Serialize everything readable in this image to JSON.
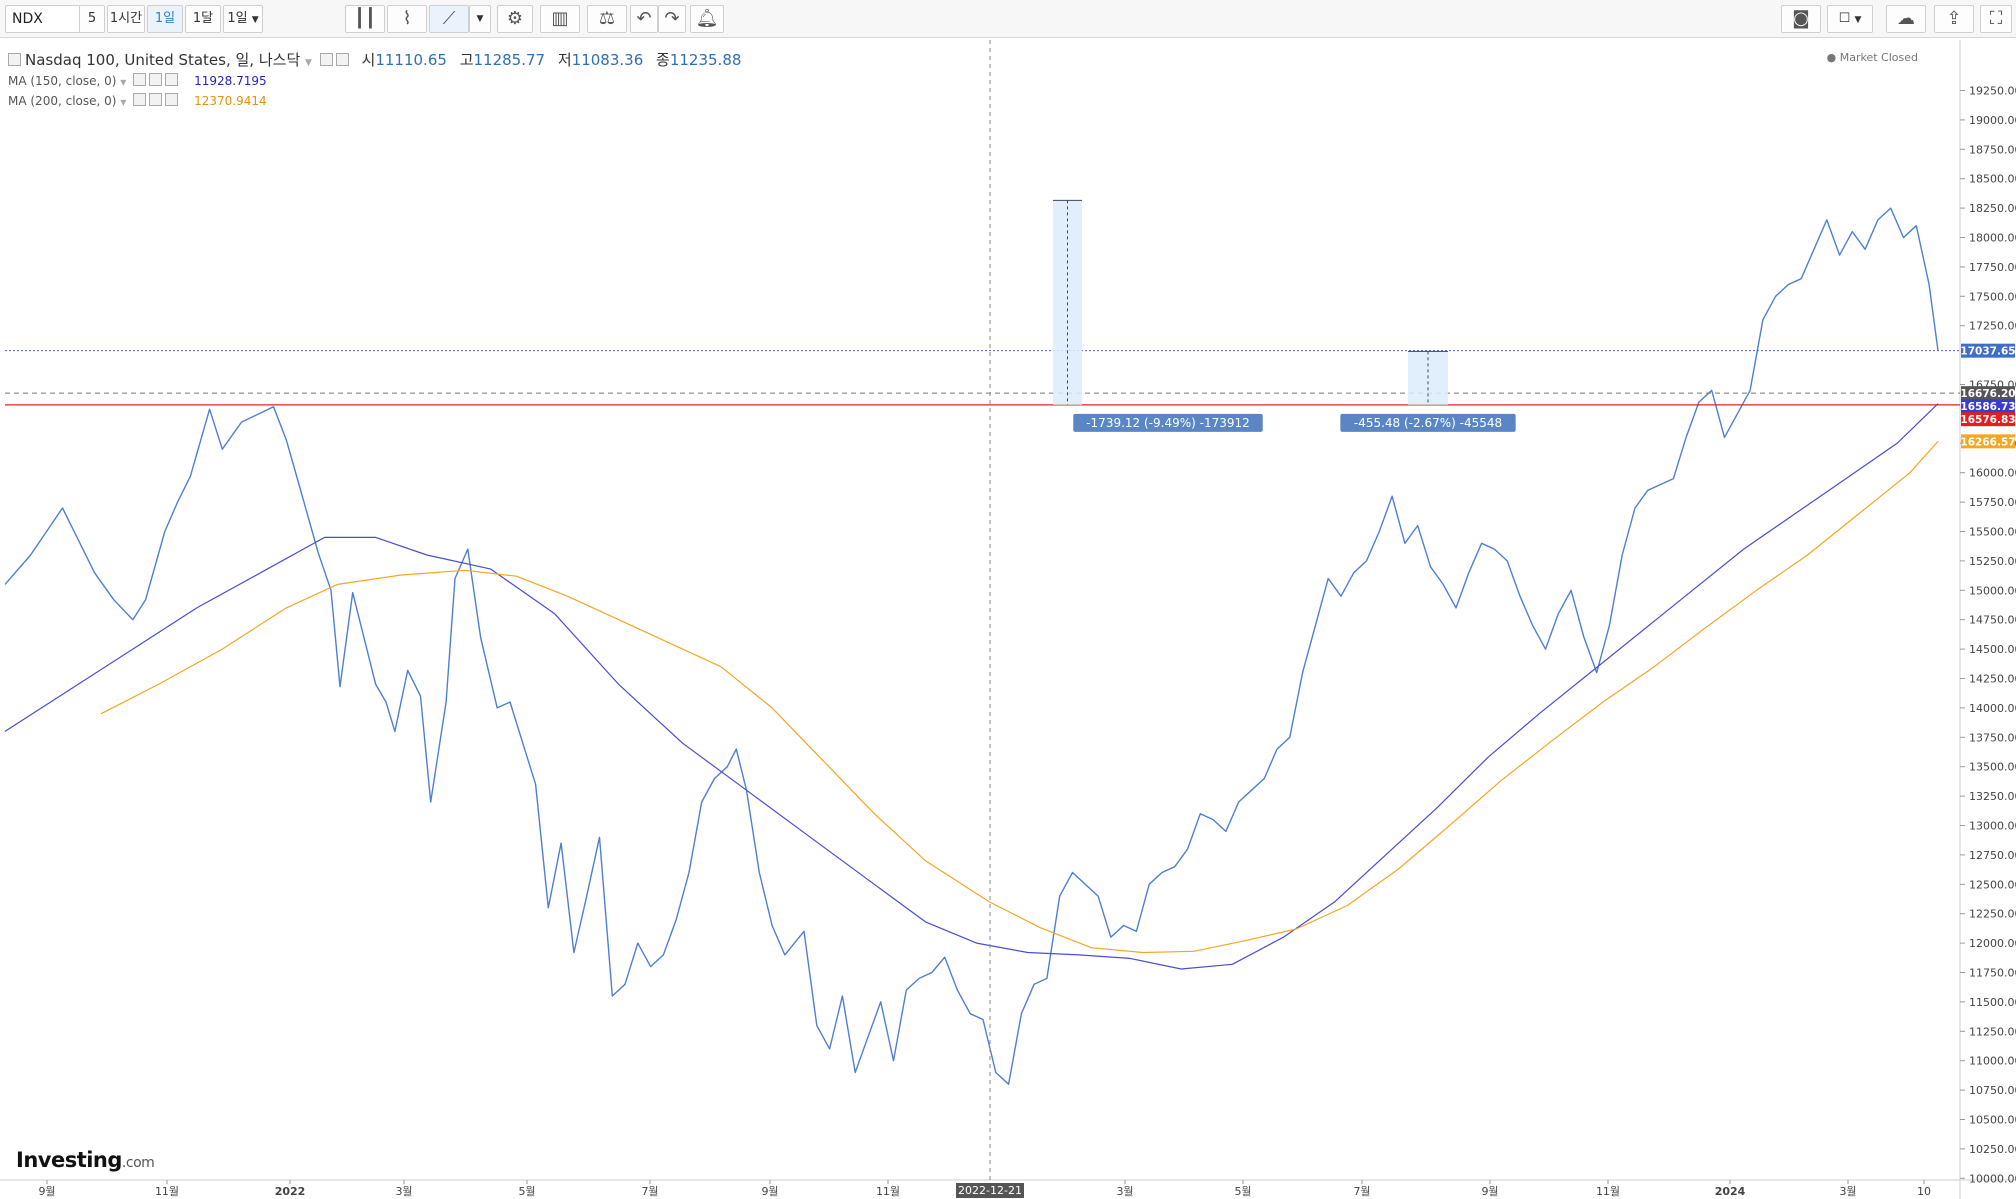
{
  "toolbar": {
    "symbol": "NDX",
    "intervals": [
      "5",
      "1시간",
      "1일",
      "1달",
      "1일"
    ],
    "active_interval_index": 2
  },
  "legend": {
    "title": "Nasdaq 100, United States, 일, 나스닥",
    "open_label": "시",
    "open": "11110.65",
    "high_label": "고",
    "high": "11285.77",
    "low_label": "저",
    "low": "11083.36",
    "close_label": "종",
    "close": "11235.88",
    "ma150_label": "MA (150, close, 0)",
    "ma150_value": "11928.7195",
    "ma200_label": "MA (200, close, 0)",
    "ma200_value": "12370.9414"
  },
  "market_status": "Market Closed",
  "logo": {
    "name": "Investing",
    "suffix": ".com"
  },
  "colors": {
    "price_line": "#4d7fd3",
    "ma150": "#4b4bd6",
    "ma200": "#f5a623",
    "support_line": "#e02020",
    "measure_fill": "#dcebfb",
    "label_bg": "#5b86c5"
  },
  "chart_data": {
    "type": "line",
    "y_axis": {
      "ticks": [
        "10000.00",
        "10250.00",
        "10500.00",
        "10750.00",
        "11000.00",
        "11250.00",
        "11500.00",
        "11750.00",
        "12000.00",
        "12250.00",
        "12500.00",
        "12750.00",
        "13000.00",
        "13250.00",
        "13500.00",
        "13750.00",
        "14000.00",
        "14250.00",
        "14500.00",
        "14750.00",
        "15000.00",
        "15250.00",
        "15500.00",
        "15750.00",
        "16000.00",
        "16250.00",
        "16750.00",
        "17250.00",
        "17500.00",
        "17750.00",
        "18000.00",
        "18250.00",
        "18500.00",
        "18750.00",
        "19000.00",
        "19250.00"
      ],
      "range": [
        9990,
        19350
      ]
    },
    "x_axis": {
      "ticks": [
        "9월",
        "11월",
        "2022",
        "3월",
        "5월",
        "7월",
        "9월",
        "11월",
        "3월",
        "5월",
        "7월",
        "9월",
        "11월",
        "2024",
        "3월",
        "10"
      ],
      "crosshair_label": "2022-12-21"
    },
    "price_labels": [
      {
        "value": "17037.65",
        "price": 17037.65,
        "color": "#3f6ec6"
      },
      {
        "value": "16676.20",
        "price": 16676.2,
        "color": "#555555"
      },
      {
        "value": "16586.73",
        "price": 16586.73,
        "color": "#3b3bd0"
      },
      {
        "value": "16576.83",
        "price": 16576.83,
        "color": "#e02020"
      },
      {
        "value": "16266.57",
        "price": 16266.57,
        "color": "#f5a623"
      }
    ],
    "measurements": [
      {
        "label": "-1739.12 (-9.49%) -173912",
        "from": 18316,
        "to": 16577
      },
      {
        "label": "-455.48 (-2.67%) -45548",
        "from": 17032,
        "to": 16577
      }
    ],
    "series": [
      {
        "name": "Nasdaq 100",
        "points": [
          [
            0,
            15050
          ],
          [
            20,
            15300
          ],
          [
            45,
            15700
          ],
          [
            70,
            15150
          ],
          [
            85,
            14920
          ],
          [
            100,
            14750
          ],
          [
            110,
            14920
          ],
          [
            125,
            15500
          ],
          [
            135,
            15750
          ],
          [
            145,
            15970
          ],
          [
            160,
            16540
          ],
          [
            170,
            16200
          ],
          [
            185,
            16430
          ],
          [
            210,
            16560
          ],
          [
            220,
            16280
          ],
          [
            230,
            15900
          ],
          [
            245,
            15320
          ],
          [
            255,
            15000
          ],
          [
            262,
            14180
          ],
          [
            272,
            14980
          ],
          [
            290,
            14200
          ],
          [
            298,
            14050
          ],
          [
            305,
            13800
          ],
          [
            315,
            14320
          ],
          [
            325,
            14100
          ],
          [
            333,
            13200
          ],
          [
            345,
            14050
          ],
          [
            352,
            15100
          ],
          [
            362,
            15350
          ],
          [
            372,
            14600
          ],
          [
            385,
            14000
          ],
          [
            395,
            14050
          ],
          [
            405,
            13700
          ],
          [
            415,
            13350
          ],
          [
            425,
            12300
          ],
          [
            435,
            12850
          ],
          [
            445,
            11920
          ],
          [
            455,
            12400
          ],
          [
            465,
            12900
          ],
          [
            475,
            11550
          ],
          [
            485,
            11650
          ],
          [
            495,
            12000
          ],
          [
            505,
            11800
          ],
          [
            515,
            11900
          ],
          [
            525,
            12200
          ],
          [
            535,
            12600
          ],
          [
            545,
            13200
          ],
          [
            555,
            13400
          ],
          [
            565,
            13500
          ],
          [
            572,
            13650
          ],
          [
            580,
            13300
          ],
          [
            590,
            12600
          ],
          [
            600,
            12150
          ],
          [
            610,
            11900
          ],
          [
            625,
            12100
          ],
          [
            635,
            11300
          ],
          [
            645,
            11100
          ],
          [
            655,
            11550
          ],
          [
            665,
            10900
          ],
          [
            675,
            11200
          ],
          [
            685,
            11500
          ],
          [
            695,
            11000
          ],
          [
            705,
            11600
          ],
          [
            715,
            11700
          ],
          [
            725,
            11750
          ],
          [
            735,
            11880
          ],
          [
            745,
            11600
          ],
          [
            755,
            11400
          ],
          [
            765,
            11350
          ],
          [
            775,
            10900
          ],
          [
            785,
            10800
          ],
          [
            795,
            11400
          ],
          [
            805,
            11650
          ],
          [
            815,
            11700
          ],
          [
            825,
            12400
          ],
          [
            835,
            12600
          ],
          [
            845,
            12500
          ],
          [
            855,
            12400
          ],
          [
            865,
            12050
          ],
          [
            875,
            12150
          ],
          [
            885,
            12100
          ],
          [
            895,
            12500
          ],
          [
            905,
            12600
          ],
          [
            915,
            12650
          ],
          [
            925,
            12800
          ],
          [
            935,
            13100
          ],
          [
            945,
            13050
          ],
          [
            955,
            12950
          ],
          [
            965,
            13200
          ],
          [
            975,
            13300
          ],
          [
            985,
            13400
          ],
          [
            995,
            13650
          ],
          [
            1005,
            13750
          ],
          [
            1015,
            14300
          ],
          [
            1025,
            14700
          ],
          [
            1035,
            15100
          ],
          [
            1045,
            14950
          ],
          [
            1055,
            15150
          ],
          [
            1065,
            15250
          ],
          [
            1075,
            15500
          ],
          [
            1085,
            15800
          ],
          [
            1095,
            15400
          ],
          [
            1105,
            15550
          ],
          [
            1115,
            15200
          ],
          [
            1125,
            15050
          ],
          [
            1135,
            14850
          ],
          [
            1145,
            15150
          ],
          [
            1155,
            15400
          ],
          [
            1165,
            15350
          ],
          [
            1175,
            15250
          ],
          [
            1185,
            14950
          ],
          [
            1195,
            14700
          ],
          [
            1205,
            14500
          ],
          [
            1215,
            14800
          ],
          [
            1225,
            15000
          ],
          [
            1235,
            14600
          ],
          [
            1245,
            14300
          ],
          [
            1255,
            14700
          ],
          [
            1265,
            15300
          ],
          [
            1275,
            15700
          ],
          [
            1285,
            15850
          ],
          [
            1295,
            15900
          ],
          [
            1305,
            15950
          ],
          [
            1315,
            16300
          ],
          [
            1325,
            16600
          ],
          [
            1335,
            16700
          ],
          [
            1345,
            16300
          ],
          [
            1355,
            16500
          ],
          [
            1365,
            16700
          ],
          [
            1375,
            17300
          ],
          [
            1385,
            17500
          ],
          [
            1395,
            17600
          ],
          [
            1405,
            17650
          ],
          [
            1415,
            17900
          ],
          [
            1425,
            18150
          ],
          [
            1435,
            17850
          ],
          [
            1445,
            18050
          ],
          [
            1455,
            17900
          ],
          [
            1465,
            18150
          ],
          [
            1475,
            18250
          ],
          [
            1485,
            18000
          ],
          [
            1495,
            18100
          ],
          [
            1505,
            17600
          ],
          [
            1512,
            17037.65
          ]
        ]
      },
      {
        "name": "MA (150, close, 0)",
        "points": [
          [
            0,
            13800
          ],
          [
            50,
            14150
          ],
          [
            100,
            14500
          ],
          [
            150,
            14850
          ],
          [
            200,
            15150
          ],
          [
            250,
            15450
          ],
          [
            290,
            15450
          ],
          [
            330,
            15300
          ],
          [
            380,
            15180
          ],
          [
            430,
            14800
          ],
          [
            480,
            14200
          ],
          [
            530,
            13700
          ],
          [
            580,
            13300
          ],
          [
            630,
            12900
          ],
          [
            680,
            12500
          ],
          [
            720,
            12180
          ],
          [
            760,
            12000
          ],
          [
            800,
            11920
          ],
          [
            840,
            11900
          ],
          [
            880,
            11870
          ],
          [
            920,
            11780
          ],
          [
            960,
            11820
          ],
          [
            1000,
            12050
          ],
          [
            1040,
            12350
          ],
          [
            1080,
            12750
          ],
          [
            1120,
            13150
          ],
          [
            1160,
            13580
          ],
          [
            1200,
            13950
          ],
          [
            1240,
            14300
          ],
          [
            1280,
            14650
          ],
          [
            1320,
            15000
          ],
          [
            1360,
            15350
          ],
          [
            1400,
            15650
          ],
          [
            1440,
            15950
          ],
          [
            1480,
            16250
          ],
          [
            1512,
            16586.73
          ]
        ]
      },
      {
        "name": "MA (200, close, 0)",
        "points": [
          [
            75,
            13950
          ],
          [
            120,
            14200
          ],
          [
            170,
            14500
          ],
          [
            220,
            14850
          ],
          [
            260,
            15050
          ],
          [
            310,
            15130
          ],
          [
            360,
            15170
          ],
          [
            400,
            15120
          ],
          [
            440,
            14950
          ],
          [
            480,
            14750
          ],
          [
            520,
            14550
          ],
          [
            560,
            14350
          ],
          [
            600,
            14000
          ],
          [
            640,
            13550
          ],
          [
            680,
            13100
          ],
          [
            720,
            12700
          ],
          [
            770,
            12350
          ],
          [
            810,
            12130
          ],
          [
            850,
            11960
          ],
          [
            890,
            11920
          ],
          [
            930,
            11930
          ],
          [
            970,
            12020
          ],
          [
            1010,
            12120
          ],
          [
            1050,
            12320
          ],
          [
            1090,
            12630
          ],
          [
            1130,
            13000
          ],
          [
            1170,
            13380
          ],
          [
            1210,
            13720
          ],
          [
            1250,
            14050
          ],
          [
            1290,
            14350
          ],
          [
            1330,
            14680
          ],
          [
            1370,
            15000
          ],
          [
            1410,
            15300
          ],
          [
            1450,
            15650
          ],
          [
            1490,
            16000
          ],
          [
            1512,
            16266.57
          ]
        ]
      }
    ]
  }
}
